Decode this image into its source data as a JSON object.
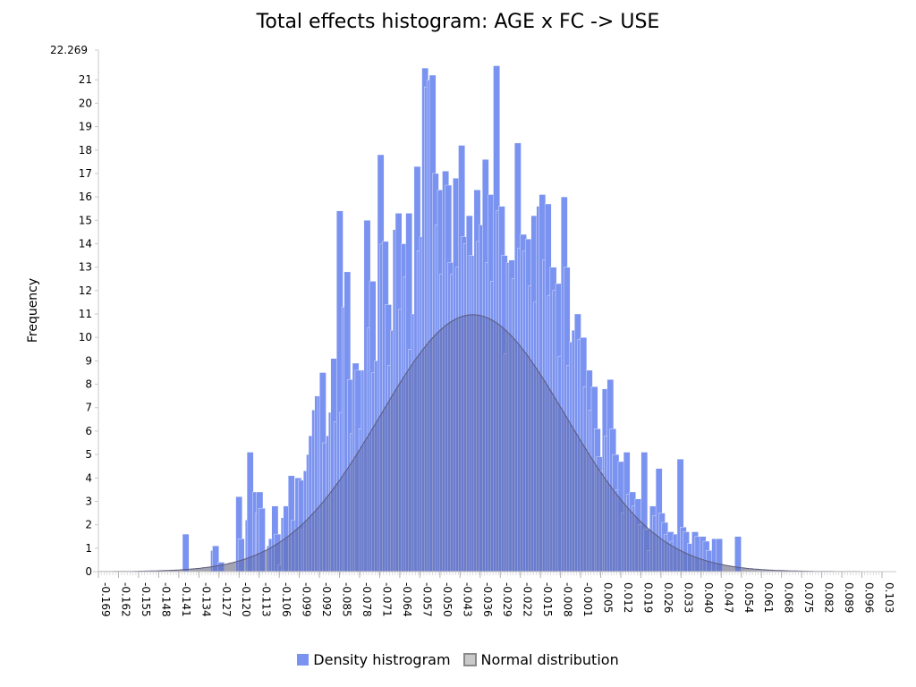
{
  "chart_data": {
    "type": "bar",
    "title": "Total effects histogram: AGE x FC -> USE",
    "ylabel": "Frequency",
    "xlabel": "",
    "ylim": [
      0,
      22.269
    ],
    "xlim": [
      -0.169,
      0.103
    ],
    "y_max_label": "22.269",
    "y_ticks": [
      0,
      1,
      2,
      3,
      4,
      5,
      6,
      7,
      8,
      9,
      10,
      11,
      12,
      13,
      14,
      15,
      16,
      17,
      18,
      19,
      20,
      21
    ],
    "x_tick_labels": [
      "-0.169",
      "-0.162",
      "-0.155",
      "-0.148",
      "-0.141",
      "-0.134",
      "-0.127",
      "-0.120",
      "-0.113",
      "-0.106",
      "-0.099",
      "-0.092",
      "-0.085",
      "-0.078",
      "-0.071",
      "-0.064",
      "-0.057",
      "-0.050",
      "-0.043",
      "-0.036",
      "-0.029",
      "-0.022",
      "-0.015",
      "-0.008",
      "-0.001",
      "0.005",
      "0.012",
      "0.019",
      "0.026",
      "0.033",
      "0.040",
      "0.047",
      "0.054",
      "0.061",
      "0.068",
      "0.075",
      "0.082",
      "0.089",
      "0.096",
      "0.103"
    ],
    "series": [
      {
        "name": "Density histrogram",
        "color": "#7b93f0",
        "bins": [
          [
            -0.1387,
            1.6
          ],
          [
            -0.1289,
            0.9
          ],
          [
            -0.1283,
            1.1
          ],
          [
            -0.1264,
            0.4
          ],
          [
            -0.1202,
            3.2
          ],
          [
            -0.1194,
            1.4
          ],
          [
            -0.1169,
            2.2
          ],
          [
            -0.1163,
            5.1
          ],
          [
            -0.1144,
            3.4
          ],
          [
            -0.1135,
            2.5
          ],
          [
            -0.113,
            3.4
          ],
          [
            -0.1122,
            2.7
          ],
          [
            -0.1094,
            1.1
          ],
          [
            -0.1088,
            1.4
          ],
          [
            -0.1077,
            2.8
          ],
          [
            -0.1068,
            1.6
          ],
          [
            -0.1055,
            0.3
          ],
          [
            -0.1045,
            2.3
          ],
          [
            -0.1037,
            2.8
          ],
          [
            -0.102,
            4.1
          ],
          [
            -0.1009,
            2.2
          ],
          [
            -0.0996,
            4.0
          ],
          [
            -0.0984,
            3.9
          ],
          [
            -0.0974,
            1.8
          ],
          [
            -0.0967,
            4.3
          ],
          [
            -0.0957,
            5.0
          ],
          [
            -0.0949,
            5.8
          ],
          [
            -0.0938,
            6.9
          ],
          [
            -0.0928,
            7.5
          ],
          [
            -0.0918,
            7.5
          ],
          [
            -0.0911,
            8.5
          ],
          [
            -0.0902,
            5.5
          ],
          [
            -0.0888,
            5.8
          ],
          [
            -0.088,
            6.8
          ],
          [
            -0.0872,
            9.1
          ],
          [
            -0.0862,
            6.4
          ],
          [
            -0.0852,
            15.4
          ],
          [
            -0.0843,
            6.8
          ],
          [
            -0.0834,
            11.3
          ],
          [
            -0.0826,
            12.8
          ],
          [
            -0.0815,
            8.2
          ],
          [
            -0.0804,
            5.9
          ],
          [
            -0.0797,
            8.9
          ],
          [
            -0.0788,
            8.6
          ],
          [
            -0.0775,
            6.1
          ],
          [
            -0.0766,
            8.6
          ],
          [
            -0.0757,
            15.0
          ],
          [
            -0.0747,
            10.4
          ],
          [
            -0.0738,
            12.4
          ],
          [
            -0.073,
            8.5
          ],
          [
            -0.0721,
            9.0
          ],
          [
            -0.071,
            17.8
          ],
          [
            -0.0702,
            14.0
          ],
          [
            -0.0694,
            14.1
          ],
          [
            -0.0684,
            11.4
          ],
          [
            -0.0675,
            8.8
          ],
          [
            -0.0665,
            10.3
          ],
          [
            -0.0657,
            14.6
          ],
          [
            -0.0648,
            15.3
          ],
          [
            -0.0637,
            11.2
          ],
          [
            -0.0628,
            14.0
          ],
          [
            -0.062,
            12.6
          ],
          [
            -0.0612,
            15.3
          ],
          [
            -0.0602,
            9.5
          ],
          [
            -0.0592,
            11.0
          ],
          [
            -0.0583,
            17.3
          ],
          [
            -0.0573,
            13.7
          ],
          [
            -0.0564,
            14.3
          ],
          [
            -0.0556,
            21.5
          ],
          [
            -0.0548,
            20.7
          ],
          [
            -0.0539,
            21.0
          ],
          [
            -0.053,
            21.2
          ],
          [
            -0.052,
            17.0
          ],
          [
            -0.0511,
            14.8
          ],
          [
            -0.0502,
            16.3
          ],
          [
            -0.0494,
            12.7
          ],
          [
            -0.0485,
            17.1
          ],
          [
            -0.0475,
            16.5
          ],
          [
            -0.0466,
            13.2
          ],
          [
            -0.0457,
            12.7
          ],
          [
            -0.0448,
            16.8
          ],
          [
            -0.0438,
            13.0
          ],
          [
            -0.0429,
            18.2
          ],
          [
            -0.042,
            14.3
          ],
          [
            -0.0411,
            14.0
          ],
          [
            -0.0402,
            15.2
          ],
          [
            -0.0393,
            13.5
          ],
          [
            -0.0384,
            13.5
          ],
          [
            -0.0375,
            16.3
          ],
          [
            -0.0366,
            14.1
          ],
          [
            -0.0357,
            14.8
          ],
          [
            -0.0346,
            17.6
          ],
          [
            -0.0336,
            13.2
          ],
          [
            -0.0327,
            16.1
          ],
          [
            -0.0318,
            12.4
          ],
          [
            -0.0308,
            21.6
          ],
          [
            -0.0299,
            15.4
          ],
          [
            -0.029,
            15.6
          ],
          [
            -0.0281,
            13.5
          ],
          [
            -0.0272,
            9.3
          ],
          [
            -0.0263,
            13.2
          ],
          [
            -0.0254,
            13.3
          ],
          [
            -0.0244,
            12.5
          ],
          [
            -0.0234,
            18.3
          ],
          [
            -0.0224,
            13.8
          ],
          [
            -0.0215,
            14.4
          ],
          [
            -0.0205,
            13.7
          ],
          [
            -0.0196,
            14.2
          ],
          [
            -0.0187,
            12.2
          ],
          [
            -0.0177,
            15.2
          ],
          [
            -0.0168,
            11.5
          ],
          [
            -0.0158,
            15.6
          ],
          [
            -0.0149,
            16.1
          ],
          [
            -0.0138,
            13.3
          ],
          [
            -0.0129,
            15.7
          ],
          [
            -0.012,
            11.8
          ],
          [
            -0.0111,
            13.0
          ],
          [
            -0.0102,
            12.0
          ],
          [
            -0.0092,
            12.3
          ],
          [
            -0.0083,
            9.2
          ],
          [
            -0.0073,
            16.0
          ],
          [
            -0.0064,
            13.0
          ],
          [
            -0.0054,
            8.8
          ],
          [
            -0.0045,
            9.8
          ],
          [
            -0.0036,
            10.3
          ],
          [
            -0.0026,
            11.0
          ],
          [
            -0.0016,
            9.9
          ],
          [
            -0.0006,
            10.0
          ],
          [
            0.0004,
            7.9
          ],
          [
            0.0014,
            8.6
          ],
          [
            0.0023,
            6.9
          ],
          [
            0.0032,
            7.9
          ],
          [
            0.0042,
            6.1
          ],
          [
            0.005,
            4.9
          ],
          [
            0.006,
            4.3
          ],
          [
            0.007,
            7.8
          ],
          [
            0.0078,
            5.8
          ],
          [
            0.0087,
            8.2
          ],
          [
            0.0096,
            6.1
          ],
          [
            0.0106,
            5.0
          ],
          [
            0.0116,
            3.5
          ],
          [
            0.0125,
            4.7
          ],
          [
            0.0135,
            2.5
          ],
          [
            0.0144,
            5.1
          ],
          [
            0.0154,
            3.3
          ],
          [
            0.0164,
            3.4
          ],
          [
            0.0173,
            2.8
          ],
          [
            0.0184,
            3.1
          ],
          [
            0.0194,
            2.0
          ],
          [
            0.0205,
            5.1
          ],
          [
            0.0214,
            1.8
          ],
          [
            0.0225,
            0.9
          ],
          [
            0.0235,
            2.8
          ],
          [
            0.0245,
            2.4
          ],
          [
            0.0256,
            4.4
          ],
          [
            0.0266,
            2.5
          ],
          [
            0.0276,
            2.1
          ],
          [
            0.0286,
            1.6
          ],
          [
            0.0296,
            1.7
          ],
          [
            0.0305,
            1.3
          ],
          [
            0.0315,
            1.6
          ],
          [
            0.033,
            4.8
          ],
          [
            0.034,
            1.9
          ],
          [
            0.035,
            1.7
          ],
          [
            0.0365,
            1.2
          ],
          [
            0.0381,
            1.7
          ],
          [
            0.0392,
            1.5
          ],
          [
            0.0408,
            1.5
          ],
          [
            0.042,
            1.3
          ],
          [
            0.043,
            0.9
          ],
          [
            0.045,
            1.4
          ],
          [
            0.0465,
            1.4
          ],
          [
            0.053,
            1.5
          ]
        ]
      },
      {
        "name": "Normal distribution",
        "color": "#c9c9c9",
        "edge_color": "#8a8a8a",
        "mean": -0.039,
        "sd": 0.0322,
        "peak": 10.97
      }
    ],
    "legend": [
      "Density histrogram",
      "Normal distribution"
    ],
    "legend_position": "bottom",
    "grid": false
  }
}
